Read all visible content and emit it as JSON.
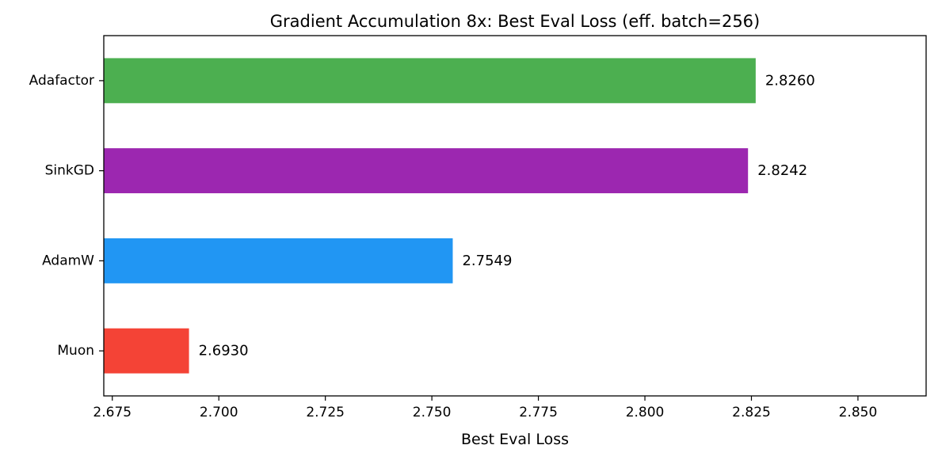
{
  "chart_data": {
    "type": "bar",
    "orientation": "horizontal",
    "title": "Gradient Accumulation 8x: Best Eval Loss (eff. batch=256)",
    "xlabel": "Best Eval Loss",
    "ylabel": "",
    "categories": [
      "Muon",
      "AdamW",
      "SinkGD",
      "Adafactor"
    ],
    "values": [
      2.693,
      2.7549,
      2.8242,
      2.826
    ],
    "value_labels": [
      "2.6930",
      "2.7549",
      "2.8242",
      "2.8260"
    ],
    "colors": [
      "#f44336",
      "#2196f3",
      "#9c27b0",
      "#4caf50"
    ],
    "xlim": [
      2.673,
      2.866
    ],
    "xticks": [
      2.675,
      2.7,
      2.725,
      2.75,
      2.775,
      2.8,
      2.825,
      2.85
    ],
    "xtick_labels": [
      "2.675",
      "2.700",
      "2.725",
      "2.750",
      "2.775",
      "2.800",
      "2.825",
      "2.850"
    ],
    "grid": false,
    "legend": "none"
  }
}
